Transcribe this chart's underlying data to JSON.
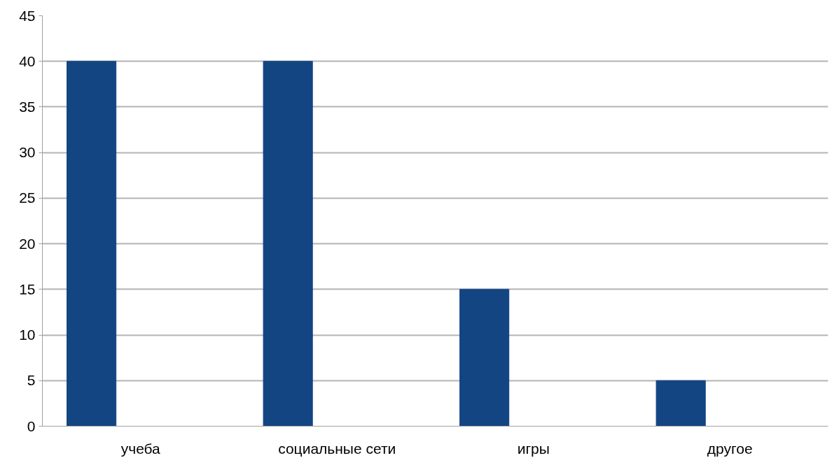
{
  "chart_data": {
    "type": "bar",
    "categories": [
      "учеба",
      "социальные сети",
      "игры",
      "другое"
    ],
    "values": [
      40,
      40,
      15,
      5
    ],
    "color": "#134583",
    "ylim": [
      0,
      45
    ],
    "yticks": [
      0,
      5,
      10,
      15,
      20,
      25,
      30,
      35,
      40,
      45
    ],
    "grid": "y"
  }
}
